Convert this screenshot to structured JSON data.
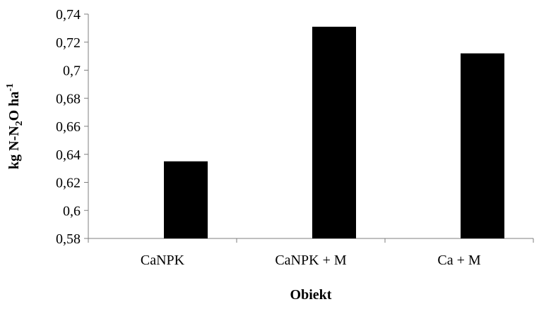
{
  "chart_data": {
    "type": "bar",
    "categories": [
      "CaNPK",
      "CaNPK + M",
      "Ca + M"
    ],
    "values": [
      0.635,
      0.731,
      0.712
    ],
    "title": "",
    "xlabel": "Obiekt",
    "ylabel": {
      "main": "kg N-N",
      "sub": "2",
      "mid": "O ha",
      "sup": "-1"
    },
    "ylim": [
      0.58,
      0.74
    ],
    "y_ticks": [
      {
        "value": 0.58,
        "label": "0,58"
      },
      {
        "value": 0.6,
        "label": "0,6"
      },
      {
        "value": 0.62,
        "label": "0,62"
      },
      {
        "value": 0.64,
        "label": "0,64"
      },
      {
        "value": 0.66,
        "label": "0,66"
      },
      {
        "value": 0.68,
        "label": "0,68"
      },
      {
        "value": 0.7,
        "label": "0,7"
      },
      {
        "value": 0.72,
        "label": "0,72"
      },
      {
        "value": 0.74,
        "label": "0,74"
      }
    ],
    "grid": false,
    "legend": "none",
    "bar_color": "#000000",
    "axis_color": "#7f7f7f"
  }
}
